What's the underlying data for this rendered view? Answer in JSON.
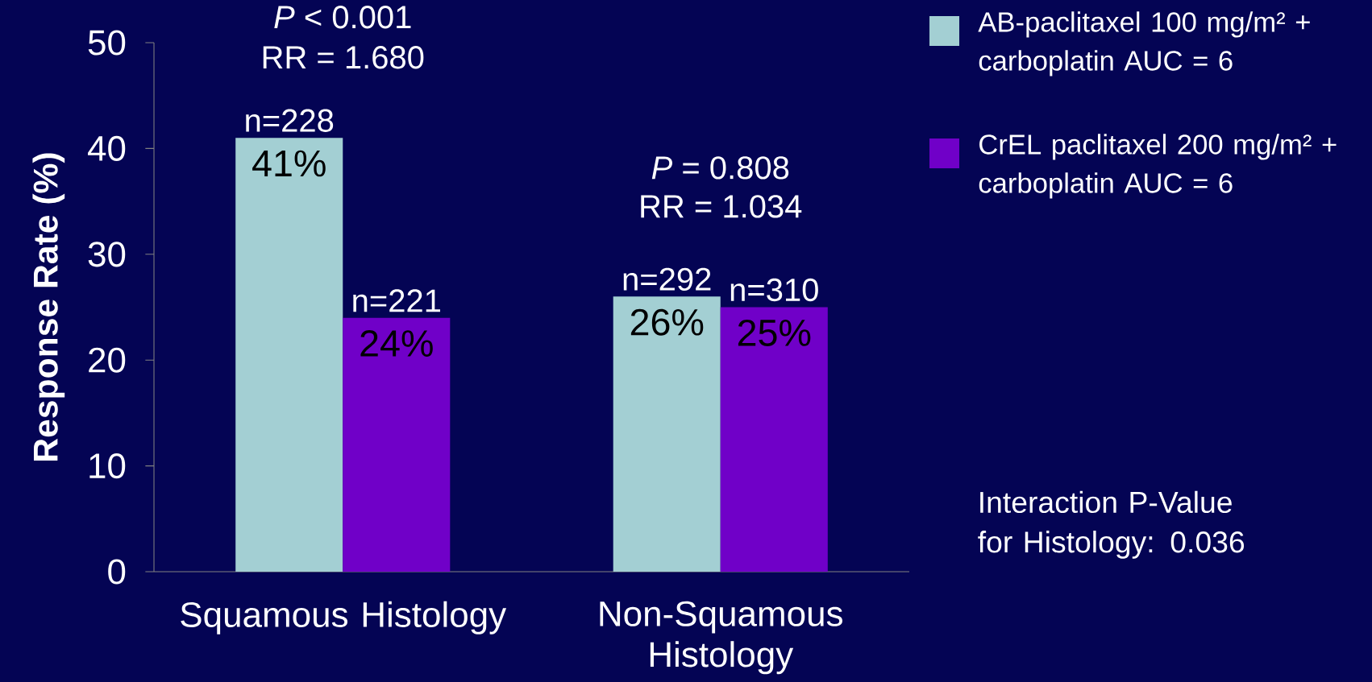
{
  "chart_data": {
    "type": "bar",
    "ylabel": "Response Rate (%)",
    "categories": [
      "Squamous Histology",
      "Non-Squamous Histology"
    ],
    "series": [
      {
        "name": "AB-paclitaxel 100 mg/m² + carboplatin AUC = 6",
        "color": "#a3cfd3",
        "values": [
          41,
          26
        ],
        "value_labels": [
          "41%",
          "26%"
        ]
      },
      {
        "name": "CrEL paclitaxel 200 mg/m² + carboplatin AUC = 6",
        "color": "#7000c8",
        "values": [
          24,
          25
        ],
        "value_labels": [
          "24%",
          "25%"
        ]
      }
    ],
    "ylim": [
      0,
      50
    ],
    "yticks": [
      0,
      10,
      20,
      30,
      40,
      50
    ],
    "legend": "top right",
    "annotations": [
      {
        "text": "n=228",
        "x": "Squamous Histology",
        "y": 41
      },
      {
        "text": "n=221",
        "x": "Squamous Histology",
        "y": 24
      },
      {
        "text": "n=292",
        "x": "Non-Squamous Histology",
        "y": 26
      },
      {
        "text": "n=310",
        "x": "Non-Squamous Histology",
        "y": 25
      },
      "*P* < 0.001",
      "RR = 1.680",
      "*P* = 0.808",
      "RR = 1.034",
      "Interaction P-Value for Histology: 0.036"
    ]
  }
}
